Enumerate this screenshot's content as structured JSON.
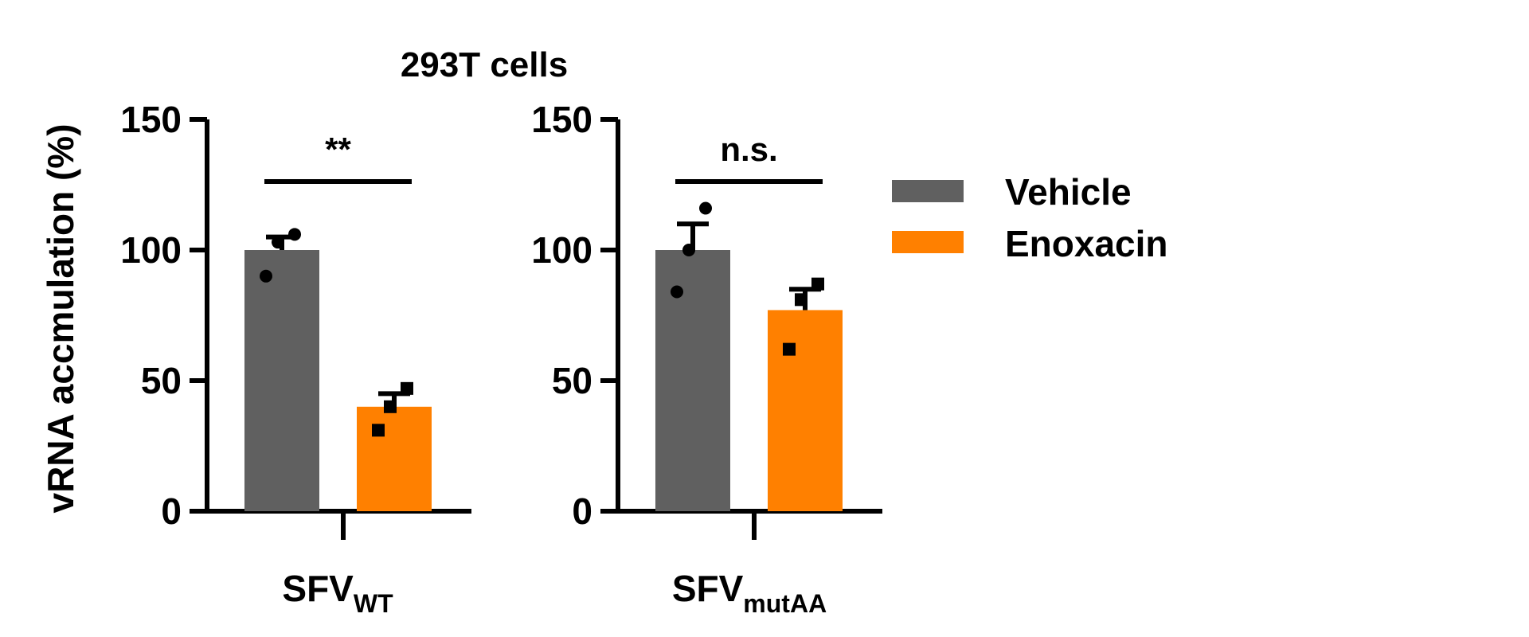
{
  "chart_data": {
    "type": "bar",
    "title": "293T cells",
    "ylabel": "vRNA accmulation (%)",
    "ylim": [
      0,
      150
    ],
    "yticks": [
      0,
      50,
      100,
      150
    ],
    "grid": false,
    "legend_position": "right",
    "series": [
      {
        "name": "Vehicle",
        "color": "#606060",
        "marker": "circle"
      },
      {
        "name": "Enoxacin",
        "color": "#ff8000",
        "marker": "square"
      }
    ],
    "panels": [
      {
        "category": {
          "main": "SFV",
          "sub": "WT"
        },
        "bars": [
          {
            "series": "Vehicle",
            "value": 100,
            "sem": 5,
            "points": [
              90,
              103,
              106
            ]
          },
          {
            "series": "Enoxacin",
            "value": 40,
            "sem": 5,
            "points": [
              31,
              40,
              47
            ]
          }
        ],
        "significance": "**"
      },
      {
        "category": {
          "main": "SFV",
          "sub": "mutAA"
        },
        "bars": [
          {
            "series": "Vehicle",
            "value": 100,
            "sem": 10,
            "points": [
              84,
              100,
              116
            ]
          },
          {
            "series": "Enoxacin",
            "value": 77,
            "sem": 8,
            "points": [
              62,
              81,
              87
            ]
          }
        ],
        "significance": "n.s."
      }
    ]
  }
}
